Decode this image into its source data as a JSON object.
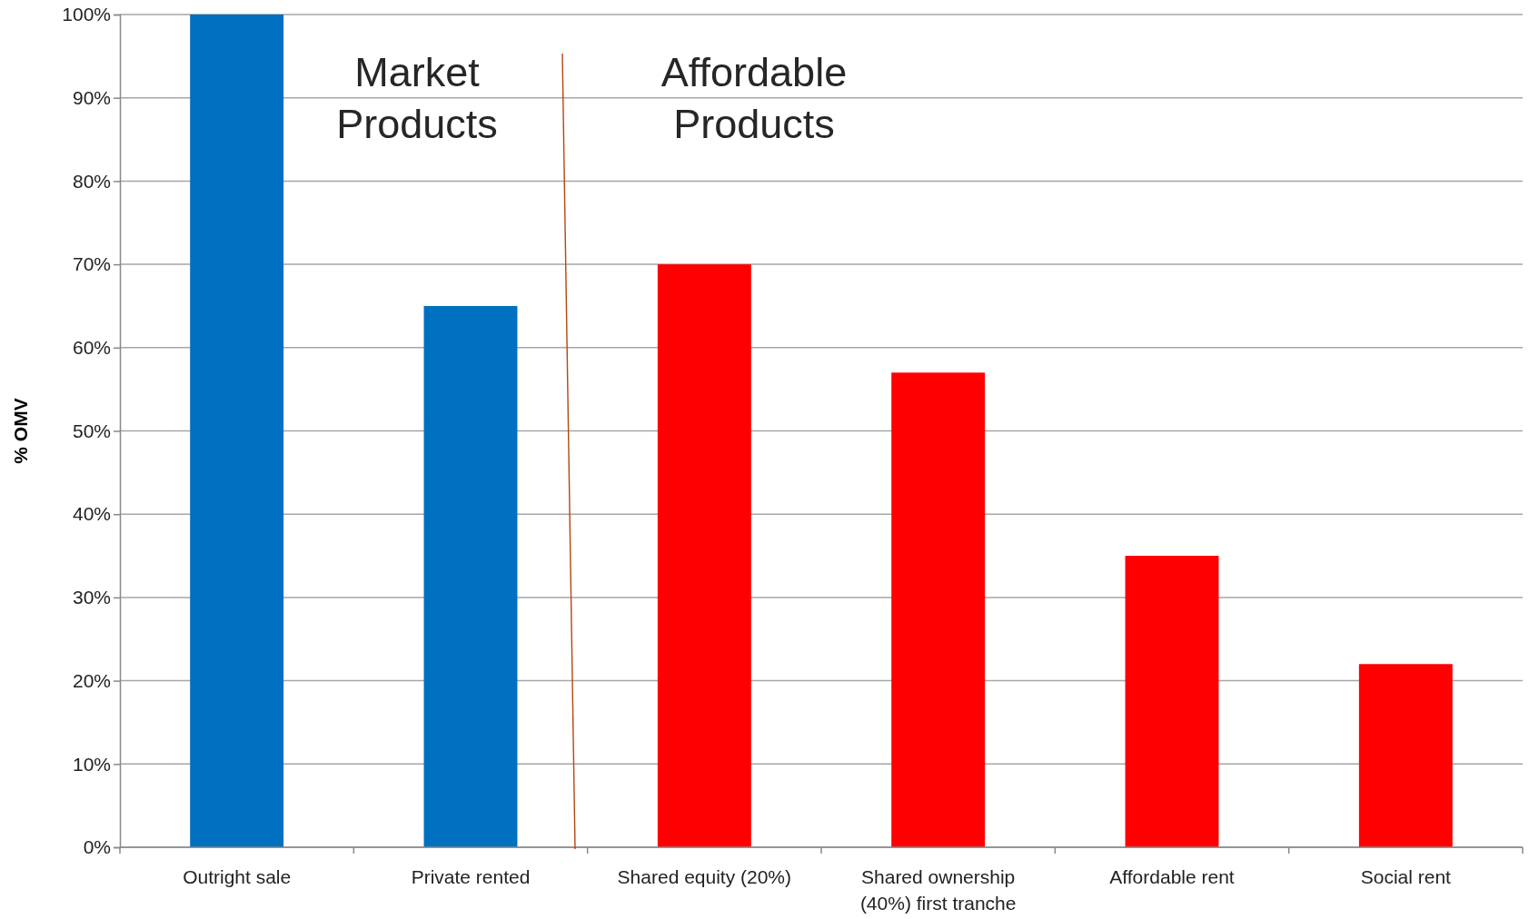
{
  "chart_data": {
    "type": "bar",
    "ylabel": "% OMV",
    "categories": [
      "Outright sale",
      "Private rented",
      "Shared equity (20%)",
      "Shared ownership (40%) first tranche",
      "Affordable rent",
      "Social rent"
    ],
    "values": [
      100,
      65,
      70,
      57,
      35,
      22
    ],
    "colors": [
      "#0070c0",
      "#0070c0",
      "#ff0000",
      "#ff0000",
      "#ff0000",
      "#ff0000"
    ],
    "ylim": [
      0,
      100
    ],
    "yticks": [
      {
        "value": 0,
        "label": "0%"
      },
      {
        "value": 10,
        "label": "10%"
      },
      {
        "value": 20,
        "label": "20%"
      },
      {
        "value": 30,
        "label": "30%"
      },
      {
        "value": 40,
        "label": "40%"
      },
      {
        "value": 50,
        "label": "50%"
      },
      {
        "value": 60,
        "label": "60%"
      },
      {
        "value": 70,
        "label": "70%"
      },
      {
        "value": 80,
        "label": "80%"
      },
      {
        "value": 90,
        "label": "90%"
      },
      {
        "value": 100,
        "label": "100%"
      }
    ],
    "grid": "y",
    "annotations": [
      "Market Products",
      "Affordable Products"
    ]
  }
}
